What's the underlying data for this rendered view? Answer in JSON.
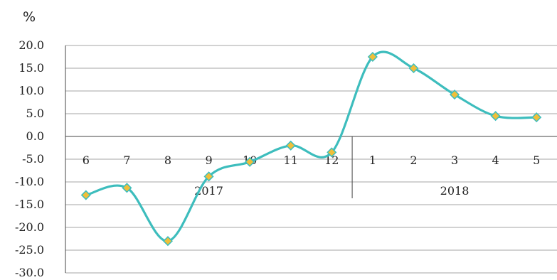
{
  "chart_data": {
    "type": "line",
    "unit_label": "%",
    "y_ticks": [
      "20.0",
      "15.0",
      "10.0",
      "5.0",
      "0.0",
      "-5.0",
      "-10.0",
      "-15.0",
      "-20.0",
      "-25.0",
      "-30.0"
    ],
    "ylim": [
      -30,
      20
    ],
    "grid": true,
    "categories": [
      "6",
      "7",
      "8",
      "9",
      "10",
      "11",
      "12",
      "1",
      "2",
      "3",
      "4",
      "5"
    ],
    "year_groups": [
      {
        "label": "2017",
        "start": 0,
        "end": 6
      },
      {
        "label": "2018",
        "start": 7,
        "end": 11
      }
    ],
    "series": [
      {
        "values": [
          -12.9,
          -11.3,
          -23.0,
          -8.8,
          -5.6,
          -2.0,
          -3.5,
          17.5,
          15.0,
          9.2,
          4.5,
          4.2
        ],
        "color": "#3dbdbd",
        "marker_color": "#f0bf3a"
      }
    ]
  }
}
